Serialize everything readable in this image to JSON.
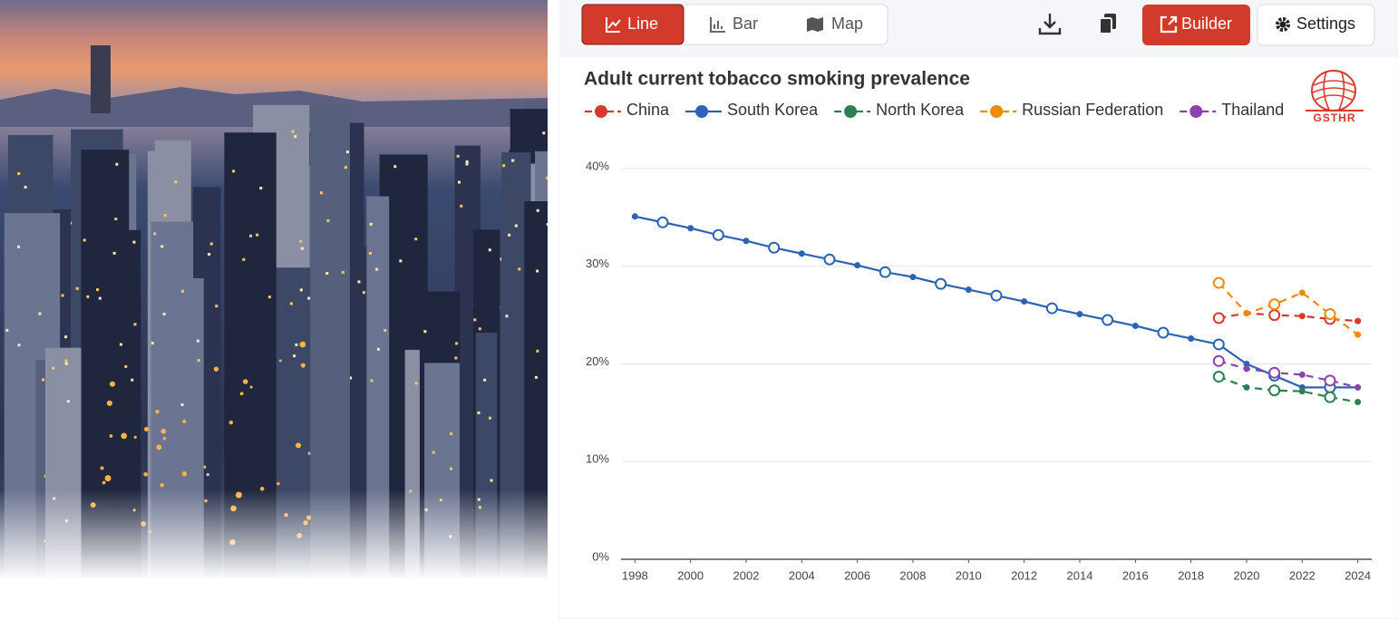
{
  "toolbar": {
    "tabs": [
      "Line",
      "Bar",
      "Map"
    ],
    "active_tab": 0,
    "builder": "Builder",
    "settings": "Settings"
  },
  "logo_text": "GSTHR",
  "chart_data": {
    "type": "line",
    "title": "Adult current tobacco smoking prevalence",
    "x": [
      1998,
      1999,
      2000,
      2001,
      2002,
      2003,
      2004,
      2005,
      2006,
      2007,
      2008,
      2009,
      2010,
      2011,
      2012,
      2013,
      2014,
      2015,
      2016,
      2017,
      2018,
      2019,
      2020,
      2021,
      2022,
      2023,
      2024
    ],
    "xlim": [
      1997.5,
      2024.5
    ],
    "xticks": [
      1998,
      2000,
      2002,
      2004,
      2006,
      2008,
      2010,
      2012,
      2014,
      2016,
      2018,
      2020,
      2022,
      2024
    ],
    "ylim": [
      0,
      40
    ],
    "yticks": [
      {
        "value": 0,
        "label": "0%"
      },
      {
        "value": 10,
        "label": "10%"
      },
      {
        "value": 20,
        "label": "20%"
      },
      {
        "value": 30,
        "label": "30%"
      },
      {
        "value": 40,
        "label": "40%"
      }
    ],
    "grid": true,
    "series": [
      {
        "name": "China",
        "color": "#d63a2f",
        "dashed": true,
        "values": [
          null,
          null,
          null,
          null,
          null,
          null,
          null,
          null,
          null,
          null,
          null,
          null,
          null,
          null,
          null,
          null,
          null,
          null,
          null,
          null,
          null,
          24.7,
          25.2,
          25.0,
          24.9,
          24.6,
          24.4
        ]
      },
      {
        "name": "South Korea",
        "color": "#2d63b4",
        "dashed": false,
        "values": [
          35.1,
          34.5,
          33.9,
          33.2,
          32.6,
          31.9,
          31.3,
          30.7,
          30.1,
          29.4,
          28.9,
          28.2,
          27.6,
          27.0,
          26.4,
          25.7,
          25.1,
          24.5,
          23.9,
          23.2,
          22.6,
          22.0,
          20.0,
          18.8,
          17.6,
          17.6,
          17.6
        ]
      },
      {
        "name": "North Korea",
        "color": "#2a8050",
        "dashed": true,
        "values": [
          null,
          null,
          null,
          null,
          null,
          null,
          null,
          null,
          null,
          null,
          null,
          null,
          null,
          null,
          null,
          null,
          null,
          null,
          null,
          null,
          null,
          18.7,
          17.6,
          17.3,
          17.2,
          16.6,
          16.1
        ]
      },
      {
        "name": "Russian Federation",
        "color": "#ef8a0c",
        "dashed": true,
        "values": [
          null,
          null,
          null,
          null,
          null,
          null,
          null,
          null,
          null,
          null,
          null,
          null,
          null,
          null,
          null,
          null,
          null,
          null,
          null,
          null,
          null,
          28.3,
          25.2,
          26.1,
          27.3,
          25.1,
          23.0
        ]
      },
      {
        "name": "Thailand",
        "color": "#8b44ad",
        "dashed": true,
        "values": [
          null,
          null,
          null,
          null,
          null,
          null,
          null,
          null,
          null,
          null,
          null,
          null,
          null,
          null,
          null,
          null,
          null,
          null,
          null,
          null,
          null,
          20.3,
          19.5,
          19.1,
          18.9,
          18.3,
          17.6
        ]
      }
    ]
  }
}
